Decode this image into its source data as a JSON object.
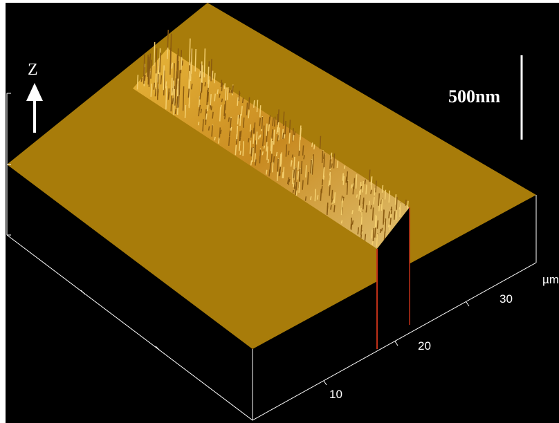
{
  "image": {
    "z_label": "Z",
    "scale_bar_label": "500nm",
    "x_unit": "µm",
    "x_tick_labels": [
      "10",
      "20",
      "30"
    ]
  }
}
